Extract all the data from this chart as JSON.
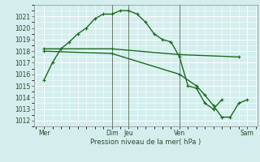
{
  "background_color": "#d4eeee",
  "grid_major_color": "#ffffff",
  "grid_minor_color": "#e8f8f8",
  "line_color": "#1a6b1a",
  "ylabel_text": "Pression niveau de la mer( hPa )",
  "ylim": [
    1011.5,
    1022.0
  ],
  "yticks": [
    1012,
    1013,
    1014,
    1015,
    1016,
    1017,
    1018,
    1019,
    1020,
    1021
  ],
  "xlim": [
    -0.1,
    13.1
  ],
  "xtick_positions": [
    0.5,
    4.5,
    5.5,
    8.5,
    12.5
  ],
  "xtick_labels": [
    "Mer",
    "Dim",
    "Jeu",
    "Ven",
    "Sam"
  ],
  "vline_positions": [
    4.5,
    5.5,
    8.5
  ],
  "series1": {
    "x": [
      0.5,
      1.0,
      1.5,
      2.0,
      2.5,
      3.0,
      3.5,
      4.0,
      4.5,
      5.0,
      5.5,
      6.0,
      6.5,
      7.0,
      7.5,
      8.0,
      8.5,
      9.0,
      9.5,
      10.0,
      10.5,
      11.0
    ],
    "y": [
      1015.5,
      1017.0,
      1018.2,
      1018.8,
      1019.5,
      1020.0,
      1020.8,
      1021.2,
      1021.2,
      1021.5,
      1021.5,
      1021.2,
      1020.5,
      1019.5,
      1019.0,
      1018.8,
      1017.5,
      1015.0,
      1014.8,
      1013.5,
      1013.0,
      1013.8
    ],
    "linewidth": 1.0,
    "markersize": 2.5
  },
  "series2": {
    "x": [
      0.5,
      4.5,
      8.5,
      12.0
    ],
    "y": [
      1018.2,
      1018.2,
      1017.7,
      1017.5
    ],
    "linewidth": 1.0,
    "markersize": 2.5
  },
  "series3": {
    "x": [
      0.5,
      4.5,
      8.5,
      9.5,
      10.0,
      10.5,
      11.0,
      11.5,
      12.0,
      12.5
    ],
    "y": [
      1018.0,
      1017.8,
      1016.0,
      1015.0,
      1014.2,
      1013.3,
      1012.3,
      1012.3,
      1013.5,
      1013.8
    ],
    "linewidth": 1.0,
    "markersize": 2.5
  },
  "figsize": [
    3.2,
    2.0
  ],
  "dpi": 100
}
